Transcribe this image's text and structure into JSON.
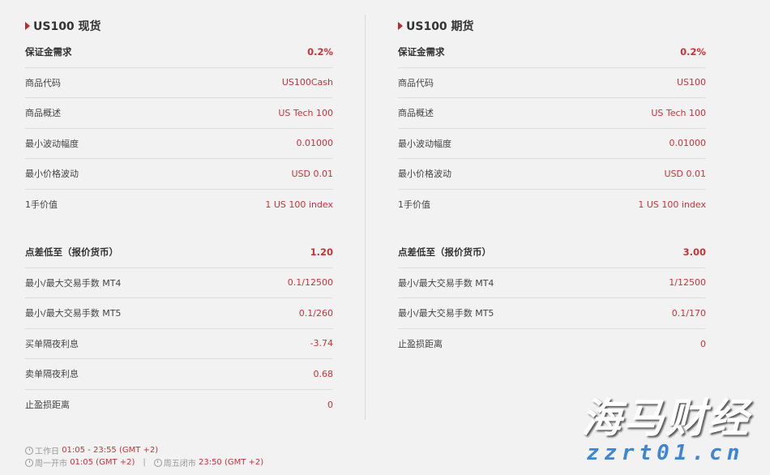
{
  "spot": {
    "title": "US100 现货",
    "section1": [
      {
        "label": "保证金需求",
        "value": "0.2%"
      },
      {
        "label": "商品代码",
        "value": "US100Cash"
      },
      {
        "label": "商品概述",
        "value": "US Tech 100"
      },
      {
        "label": "最小波动幅度",
        "value": "0.01000"
      },
      {
        "label": "最小价格波动",
        "value": "USD 0.01"
      },
      {
        "label": "1手价值",
        "value": "1 US 100 index"
      }
    ],
    "section2": [
      {
        "label": "点差低至（报价货币）",
        "value": "1.20"
      },
      {
        "label": "最小/最大交易手数 MT4",
        "value": "0.1/12500"
      },
      {
        "label": "最小/最大交易手数 MT5",
        "value": "0.1/260"
      },
      {
        "label": "买单隔夜利息",
        "value": "-3.74"
      },
      {
        "label": "卖单隔夜利息",
        "value": "0.68"
      },
      {
        "label": "止盈损距离",
        "value": "0"
      }
    ]
  },
  "futures": {
    "title": "US100 期货",
    "section1": [
      {
        "label": "保证金需求",
        "value": "0.2%"
      },
      {
        "label": "商品代码",
        "value": "US100"
      },
      {
        "label": "商品概述",
        "value": "US Tech 100"
      },
      {
        "label": "最小波动幅度",
        "value": "0.01000"
      },
      {
        "label": "最小价格波动",
        "value": "USD 0.01"
      },
      {
        "label": "1手价值",
        "value": "1 US 100 index"
      }
    ],
    "section2": [
      {
        "label": "点差低至（报价货币）",
        "value": "3.00"
      },
      {
        "label": "最小/最大交易手数 MT4",
        "value": "1/12500"
      },
      {
        "label": "最小/最大交易手数 MT5",
        "value": "0.1/170"
      },
      {
        "label": "止盈损距离",
        "value": "0"
      }
    ]
  },
  "hours": {
    "workday_label": "工作日",
    "workday_value": "01:05 - 23:55 (GMT +2)",
    "monday_label": "周一开市",
    "monday_value": "01:05 (GMT +2)",
    "separator": "|",
    "friday_label": "周五闭市",
    "friday_value": "23:50 (GMT +2)"
  },
  "watermark": {
    "text": "海马财经",
    "url": "zzrt01.cn"
  },
  "colors": {
    "accent": "#c8323a",
    "background": "#f2f2f2"
  }
}
